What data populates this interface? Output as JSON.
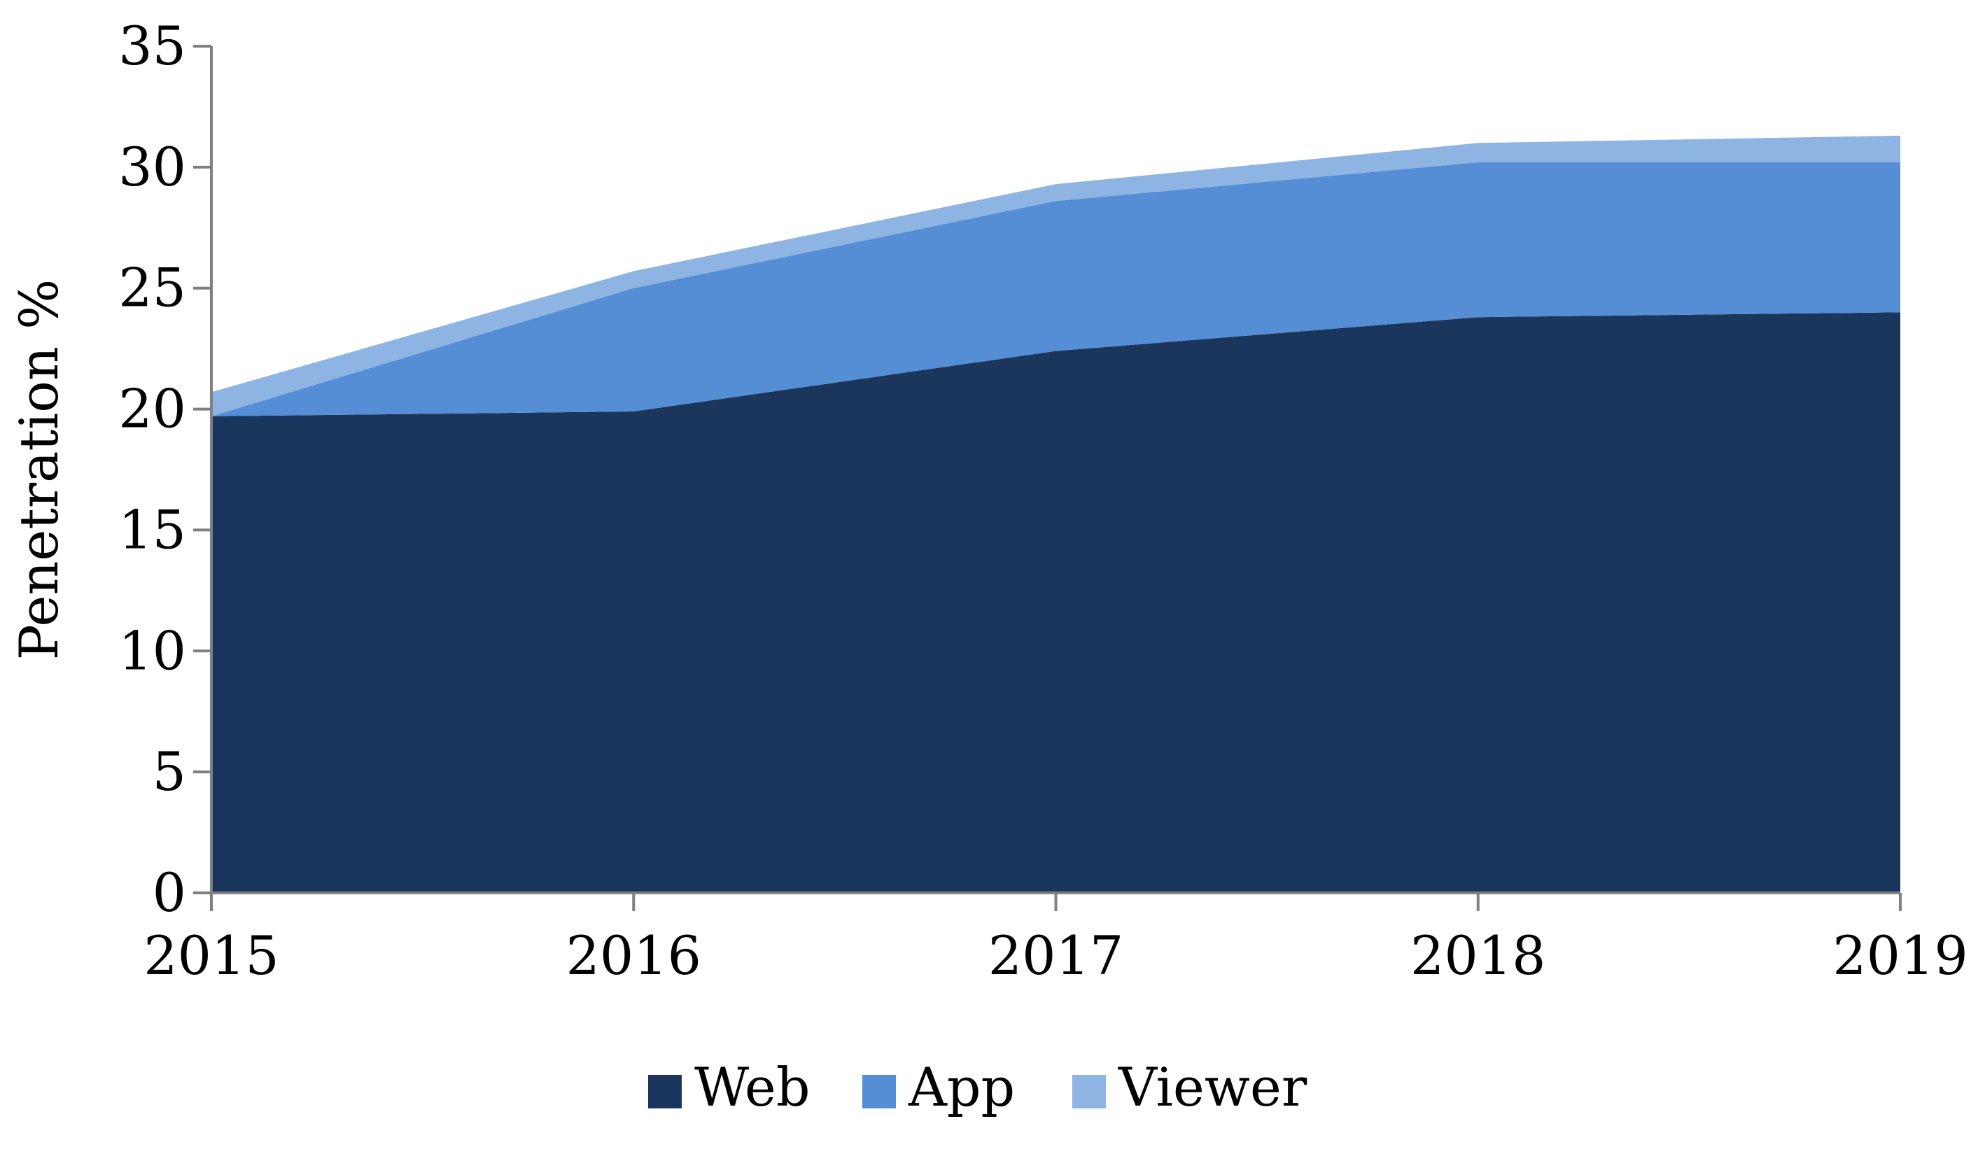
{
  "chart_data": {
    "type": "area",
    "stacked": true,
    "title": "",
    "xlabel": "",
    "ylabel": "Penetration %",
    "x": [
      "2015",
      "2016",
      "2017",
      "2018",
      "2019"
    ],
    "ylim": [
      0,
      35
    ],
    "yticks": [
      0,
      5,
      10,
      15,
      20,
      25,
      30,
      35
    ],
    "grid": false,
    "legend_position": "bottom",
    "series": [
      {
        "name": "Web",
        "color": "#1b365d",
        "values": [
          19.7,
          19.9,
          22.4,
          23.8,
          24.0
        ]
      },
      {
        "name": "App",
        "color": "#558ed5",
        "values": [
          0.0,
          5.1,
          6.2,
          6.4,
          6.2
        ]
      },
      {
        "name": "Viewer",
        "color": "#8eb4e3",
        "values": [
          1.0,
          0.7,
          0.7,
          0.8,
          1.1
        ]
      }
    ]
  }
}
